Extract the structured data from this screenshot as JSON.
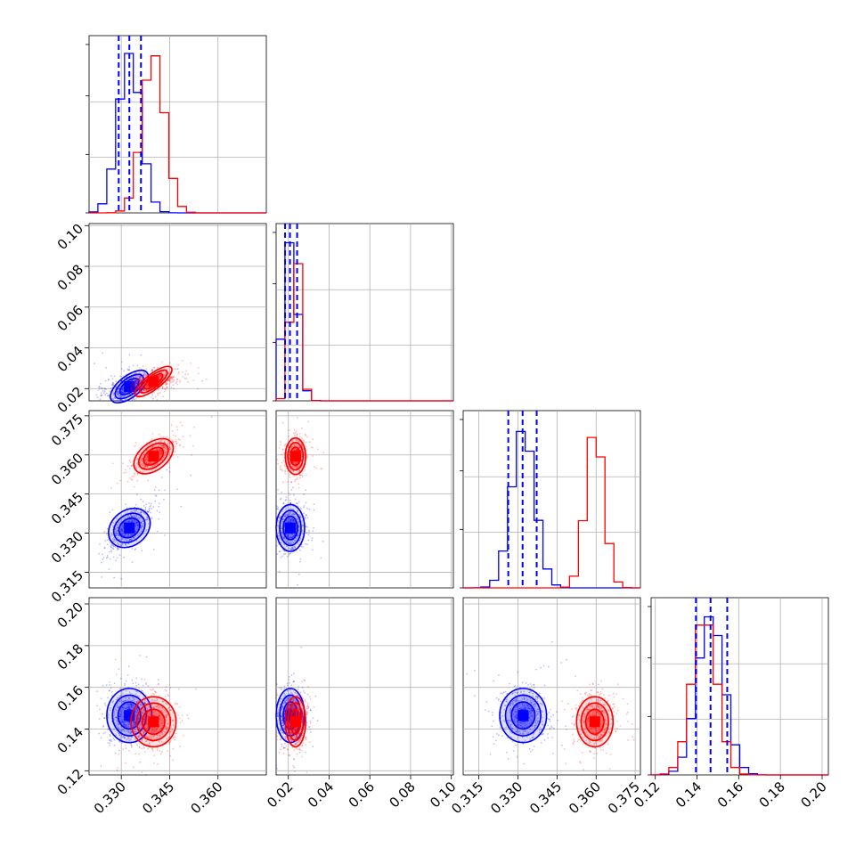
{
  "chart_data": {
    "type": "corner",
    "colors": {
      "sample_a": "#0000ff",
      "sample_b": "#ff0000"
    },
    "grid": true,
    "parameters": [
      {
        "range": [
          0.32,
          0.375
        ],
        "ticks": [
          "0.330",
          "0.345",
          "0.360"
        ],
        "tick_values": [
          0.33,
          0.345,
          0.36
        ]
      },
      {
        "range": [
          0.014,
          0.101
        ],
        "ticks": [
          "0.02",
          "0.04",
          "0.06",
          "0.08",
          "0.10"
        ],
        "tick_values": [
          0.02,
          0.04,
          0.06,
          0.08,
          0.1
        ]
      },
      {
        "range": [
          0.309,
          0.377
        ],
        "ticks": [
          "0.315",
          "0.330",
          "0.345",
          "0.360",
          "0.375"
        ],
        "tick_values": [
          0.315,
          0.33,
          0.345,
          0.36,
          0.375
        ]
      },
      {
        "range": [
          0.118,
          0.203
        ],
        "ticks": [
          "0.12",
          "0.14",
          "0.16",
          "0.18",
          "0.20"
        ],
        "tick_values": [
          0.12,
          0.14,
          0.16,
          0.18,
          0.2
        ]
      }
    ],
    "samples": [
      {
        "color": "#0000ff",
        "mean": [
          0.3325,
          0.021,
          0.332,
          0.1465
        ],
        "std": [
          0.0035,
          0.0035,
          0.0045,
          0.0065
        ],
        "quantiles": [
          [
            0.3292,
            0.3325,
            0.3361
          ],
          [
            0.0184,
            0.0208,
            0.0243
          ],
          [
            0.3263,
            0.3318,
            0.3372
          ],
          [
            0.1395,
            0.1465,
            0.1545
          ]
        ]
      },
      {
        "color": "#ff0000",
        "mean": [
          0.34,
          0.0235,
          0.3595,
          0.1435
        ],
        "std": [
          0.0035,
          0.0025,
          0.0035,
          0.006
        ]
      }
    ]
  }
}
